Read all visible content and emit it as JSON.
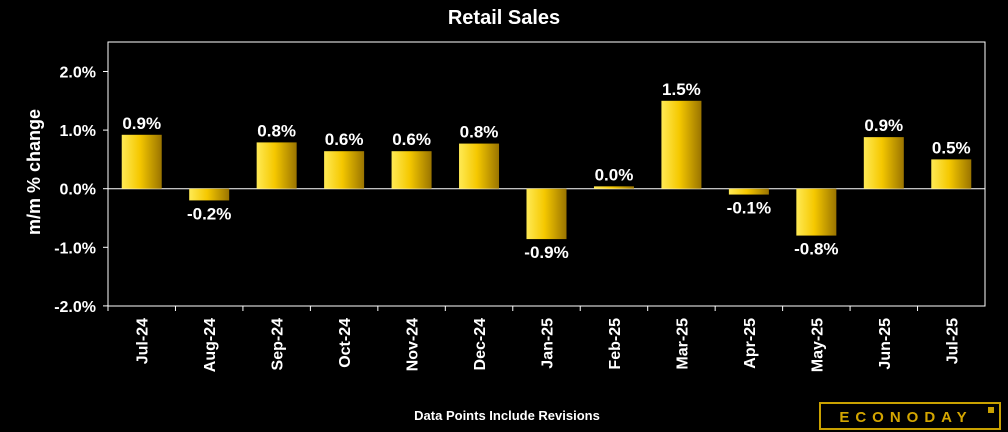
{
  "chart_data": {
    "type": "bar",
    "title": "Retail Sales",
    "xlabel": "",
    "ylabel": "m/m % change",
    "ylim": [
      -2.0,
      2.5
    ],
    "yticks": [
      2.0,
      1.0,
      0.0,
      -1.0,
      -2.0
    ],
    "ytick_labels": [
      "2.0%",
      "1.0%",
      "0.0%",
      "-1.0%",
      "-2.0%"
    ],
    "grid": false,
    "legend": "none",
    "categories": [
      "Jul-24",
      "Aug-24",
      "Sep-24",
      "Oct-24",
      "Nov-24",
      "Dec-24",
      "Jan-25",
      "Feb-25",
      "Mar-25",
      "Apr-25",
      "May-25",
      "Jun-25",
      "Jul-25"
    ],
    "values": [
      0.92,
      -0.2,
      0.79,
      0.64,
      0.64,
      0.77,
      -0.86,
      0.04,
      1.5,
      -0.1,
      -0.8,
      0.88,
      0.5
    ],
    "data_labels": [
      "0.9%",
      "-0.2%",
      "0.8%",
      "0.6%",
      "0.6%",
      "0.8%",
      "-0.9%",
      "0.0%",
      "1.5%",
      "-0.1%",
      "-0.8%",
      "0.9%",
      "0.5%"
    ]
  },
  "footnote": "Data Points Include Revisions",
  "logo": "ECONODAY",
  "colors": {
    "background": "#000000",
    "bar_light": "#ffe44a",
    "bar_dark": "#9a7400",
    "text": "#ffffff",
    "axis": "#ffffff",
    "logo": "#d4a600"
  }
}
